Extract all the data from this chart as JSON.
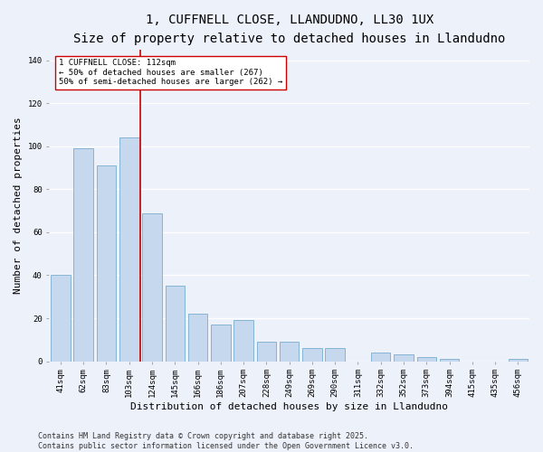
{
  "title_line1": "1, CUFFNELL CLOSE, LLANDUDNO, LL30 1UX",
  "title_line2": "Size of property relative to detached houses in Llandudno",
  "xlabel": "Distribution of detached houses by size in Llandudno",
  "ylabel": "Number of detached properties",
  "categories": [
    "41sqm",
    "62sqm",
    "83sqm",
    "103sqm",
    "124sqm",
    "145sqm",
    "166sqm",
    "186sqm",
    "207sqm",
    "228sqm",
    "249sqm",
    "269sqm",
    "290sqm",
    "311sqm",
    "332sqm",
    "352sqm",
    "373sqm",
    "394sqm",
    "415sqm",
    "435sqm",
    "456sqm"
  ],
  "values": [
    40,
    99,
    91,
    104,
    69,
    35,
    22,
    17,
    19,
    9,
    9,
    6,
    6,
    0,
    4,
    3,
    2,
    1,
    0,
    0,
    1
  ],
  "bar_color": "#c5d8ee",
  "bar_edge_color": "#7aadce",
  "vline_x": 3.5,
  "vline_color": "#cc0000",
  "annotation_text": "1 CUFFNELL CLOSE: 112sqm\n← 50% of detached houses are smaller (267)\n50% of semi-detached houses are larger (262) →",
  "annotation_box_color": "#ffffff",
  "annotation_box_edge": "#cc0000",
  "ylim": [
    0,
    145
  ],
  "yticks": [
    0,
    20,
    40,
    60,
    80,
    100,
    120,
    140
  ],
  "bg_color": "#edf1f9",
  "grid_color": "#ffffff",
  "footer": "Contains HM Land Registry data © Crown copyright and database right 2025.\nContains public sector information licensed under the Open Government Licence v3.0.",
  "title_fontsize": 10,
  "subtitle_fontsize": 9,
  "xlabel_fontsize": 8,
  "ylabel_fontsize": 8,
  "tick_fontsize": 6.5,
  "annotation_fontsize": 6.5,
  "footer_fontsize": 6
}
